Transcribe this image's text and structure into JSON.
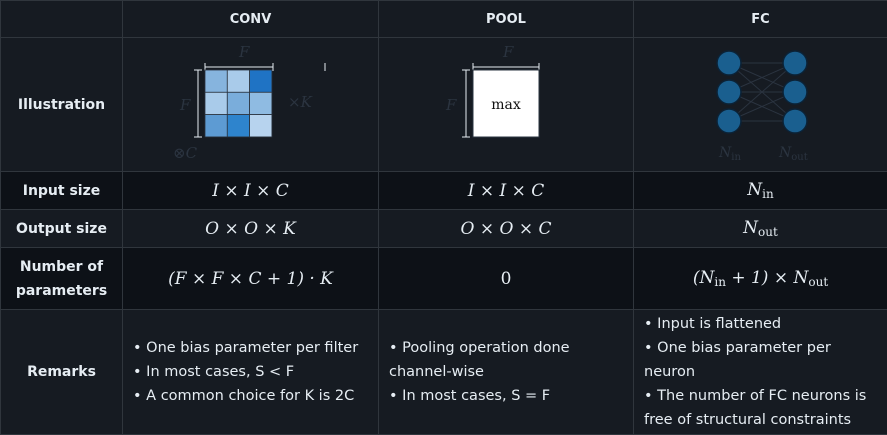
{
  "header": {
    "corner": "",
    "conv": "CONV",
    "pool": "POOL",
    "fc": "FC"
  },
  "rows": {
    "illustration": "Illustration",
    "input_size": "Input size",
    "output_size": "Output size",
    "params": "Number of parameters",
    "remarks": "Remarks"
  },
  "illustration": {
    "conv_f_top": "F",
    "conv_f_left": "F",
    "conv_k": "×K",
    "conv_c": "⊗C",
    "conv_colors": [
      "#86b4de",
      "#a9cbea",
      "#1f73c4",
      "#a9cbea",
      "#7aaddb",
      "#8fbbe2",
      "#5d9bd3",
      "#2e84cd",
      "#b7d3ee"
    ],
    "pool_f_top": "F",
    "pool_f_left": "F",
    "pool_box": "max",
    "fc_nin": "N_in",
    "fc_nout": "N_out"
  },
  "input_size": {
    "conv": "I × I × C",
    "pool": "I × I × C",
    "fc": "N_in"
  },
  "output_size": {
    "conv": "O × O × K",
    "pool": "O × O × C",
    "fc": "N_out"
  },
  "params": {
    "conv": "(F × F × C + 1) · K",
    "pool": "0",
    "fc": "(N_in + 1) × N_out"
  },
  "remarks": {
    "conv": [
      "• One bias parameter per filter",
      "• In most cases, S < F",
      "• A common choice for K is 2C"
    ],
    "pool": [
      "• Pooling operation done channel-wise",
      "• In most cases, S = F"
    ],
    "fc": [
      "• Input is flattened",
      "• One bias parameter per neuron",
      "• The number of FC neurons is free of structural constraints"
    ]
  },
  "colors": {
    "background": "#0d1117",
    "row_alt": "#161b22",
    "border": "#30363d",
    "neuron": "#1a5f8f"
  }
}
